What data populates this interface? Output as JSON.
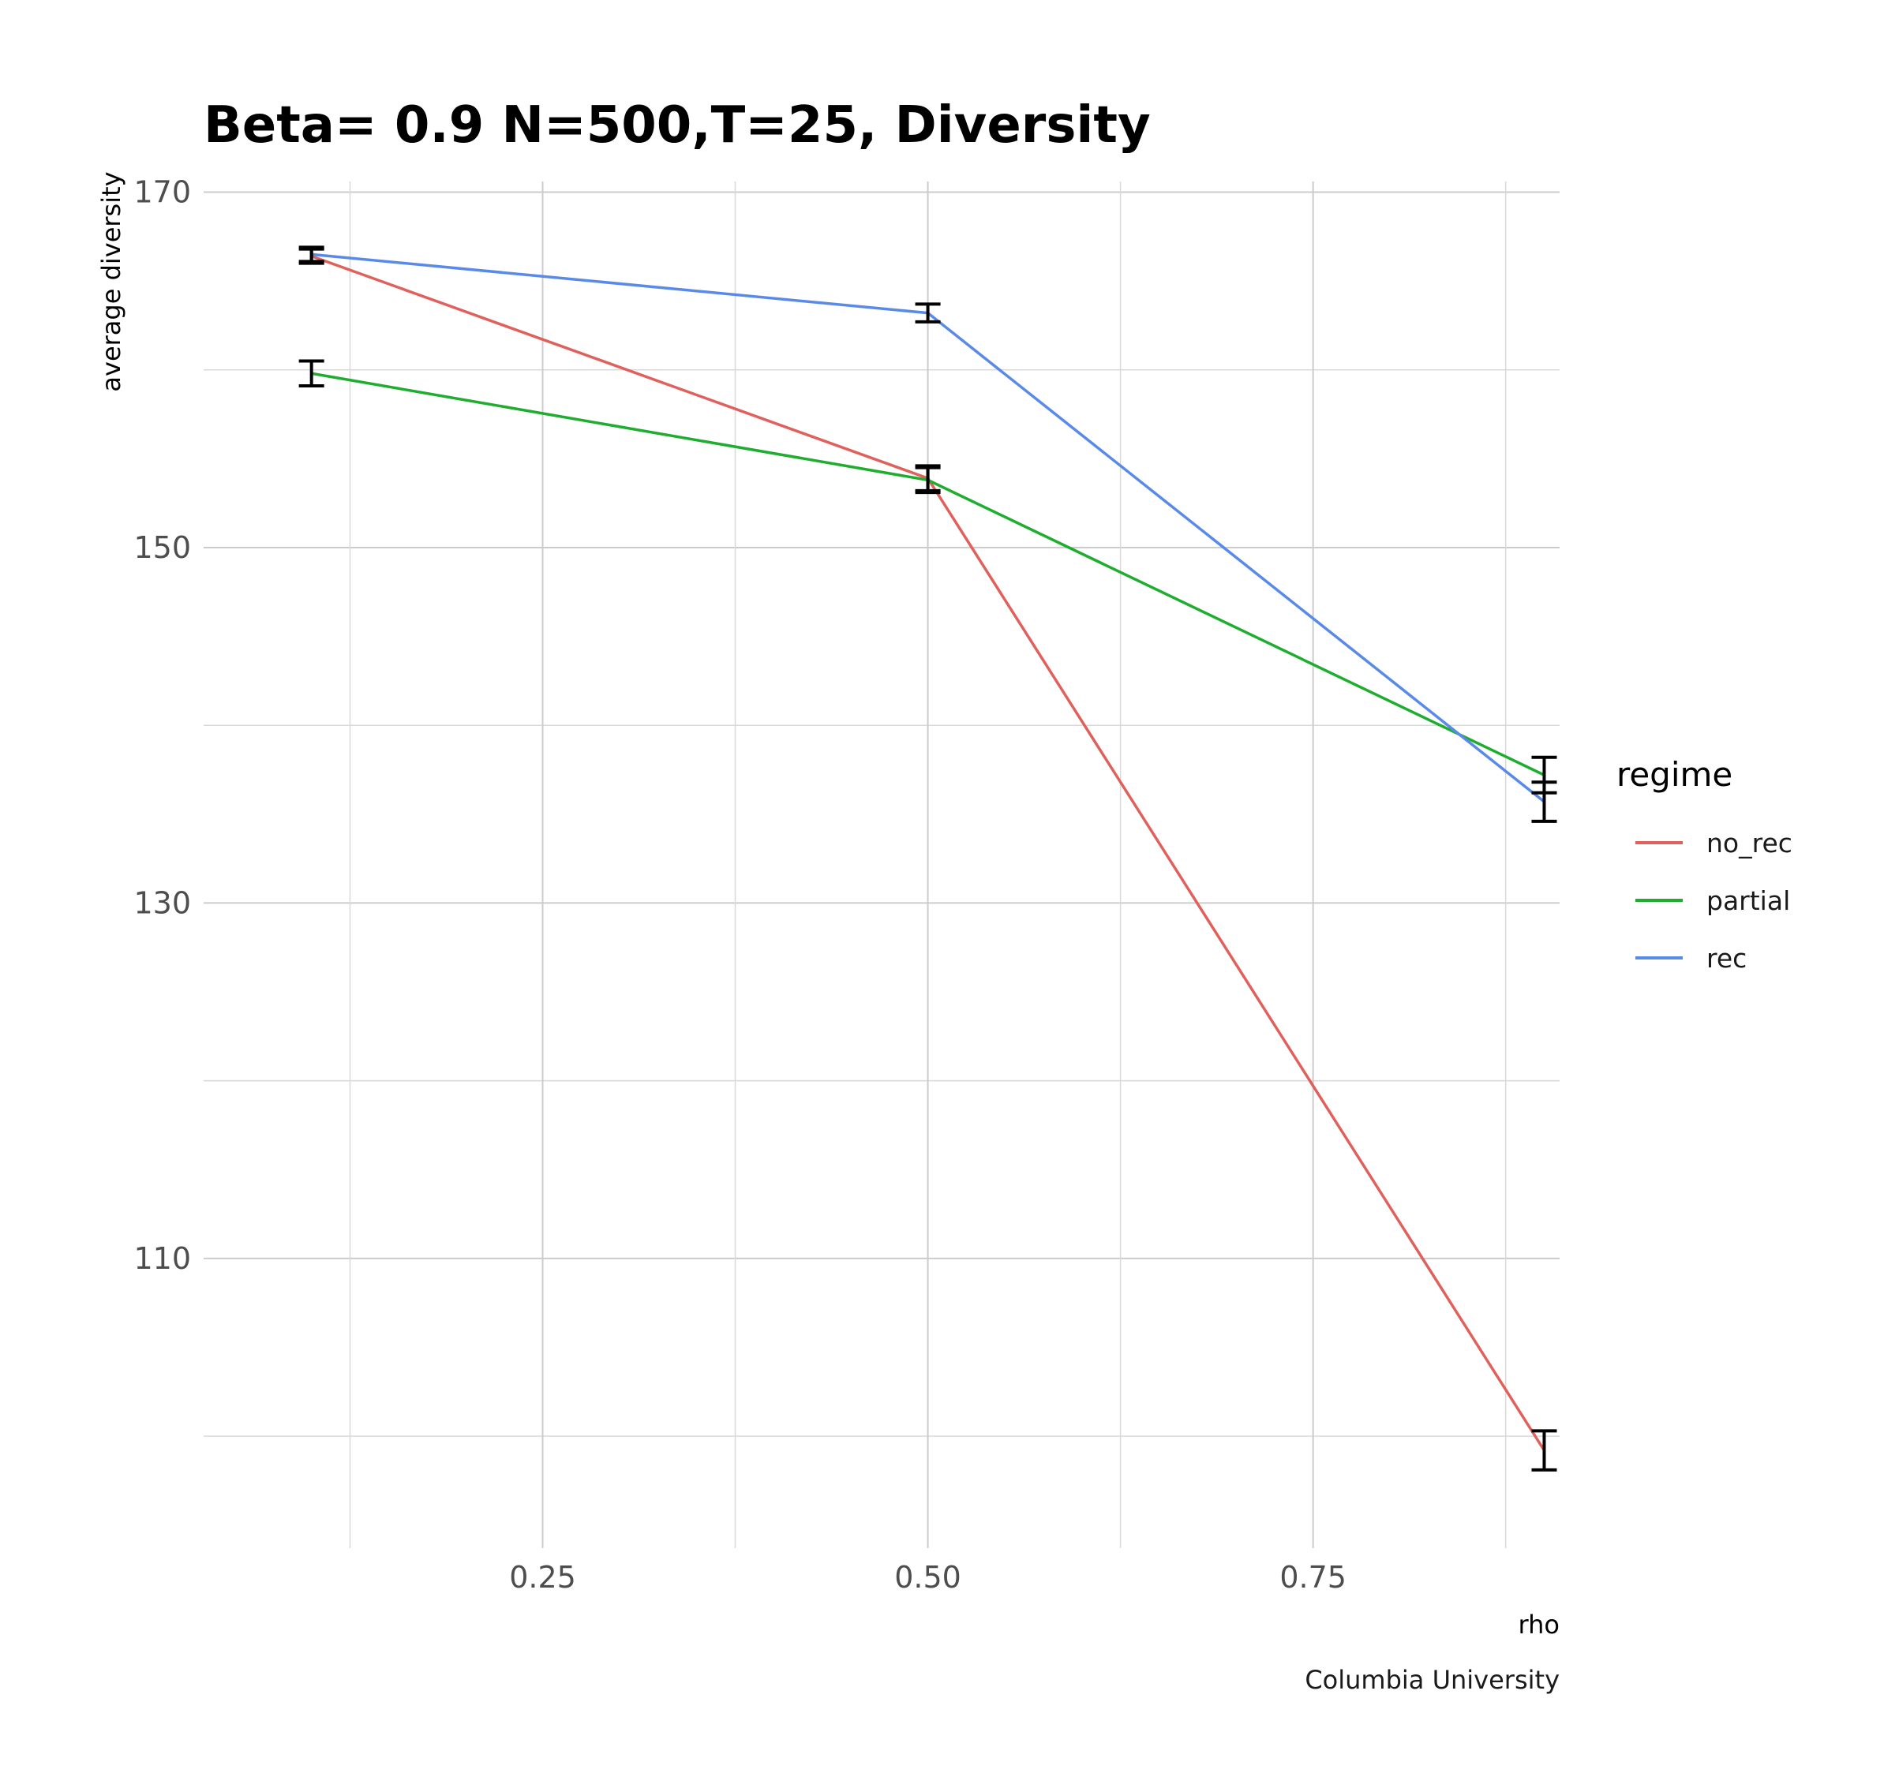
{
  "chart_data": {
    "type": "line",
    "title": "Beta= 0.9 N=500,T=25, Diversity",
    "xlabel": "rho",
    "ylabel": "average diversity",
    "caption": "Columbia University",
    "xlim": [
      0.03,
      0.91
    ],
    "ylim": [
      93.7,
      170.6
    ],
    "x_ticks": [
      0.25,
      0.5,
      0.75
    ],
    "x_tick_labels": [
      "0.25",
      "0.50",
      "0.75"
    ],
    "y_ticks": [
      110,
      130,
      150,
      170
    ],
    "y_tick_labels": [
      "110",
      "130",
      "150",
      "170"
    ],
    "grid": true,
    "legend": {
      "title": "regime",
      "position": "right"
    },
    "x": [
      0.1,
      0.5,
      0.9
    ],
    "series": [
      {
        "name": "no_rec",
        "color": "#E0605C",
        "values": [
          166.4,
          153.9,
          99.2
        ],
        "error_low": [
          166.0,
          153.2,
          98.1
        ],
        "error_high": [
          166.8,
          154.6,
          100.3
        ]
      },
      {
        "name": "partial",
        "color": "#1EAD2E",
        "values": [
          159.8,
          153.8,
          137.2
        ],
        "error_low": [
          159.1,
          153.1,
          136.2
        ],
        "error_high": [
          160.5,
          154.5,
          138.2
        ]
      },
      {
        "name": "rec",
        "color": "#5A8AE8",
        "values": [
          166.5,
          163.2,
          135.7
        ],
        "error_low": [
          166.1,
          162.7,
          134.6
        ],
        "error_high": [
          166.9,
          163.7,
          136.8
        ]
      }
    ]
  }
}
